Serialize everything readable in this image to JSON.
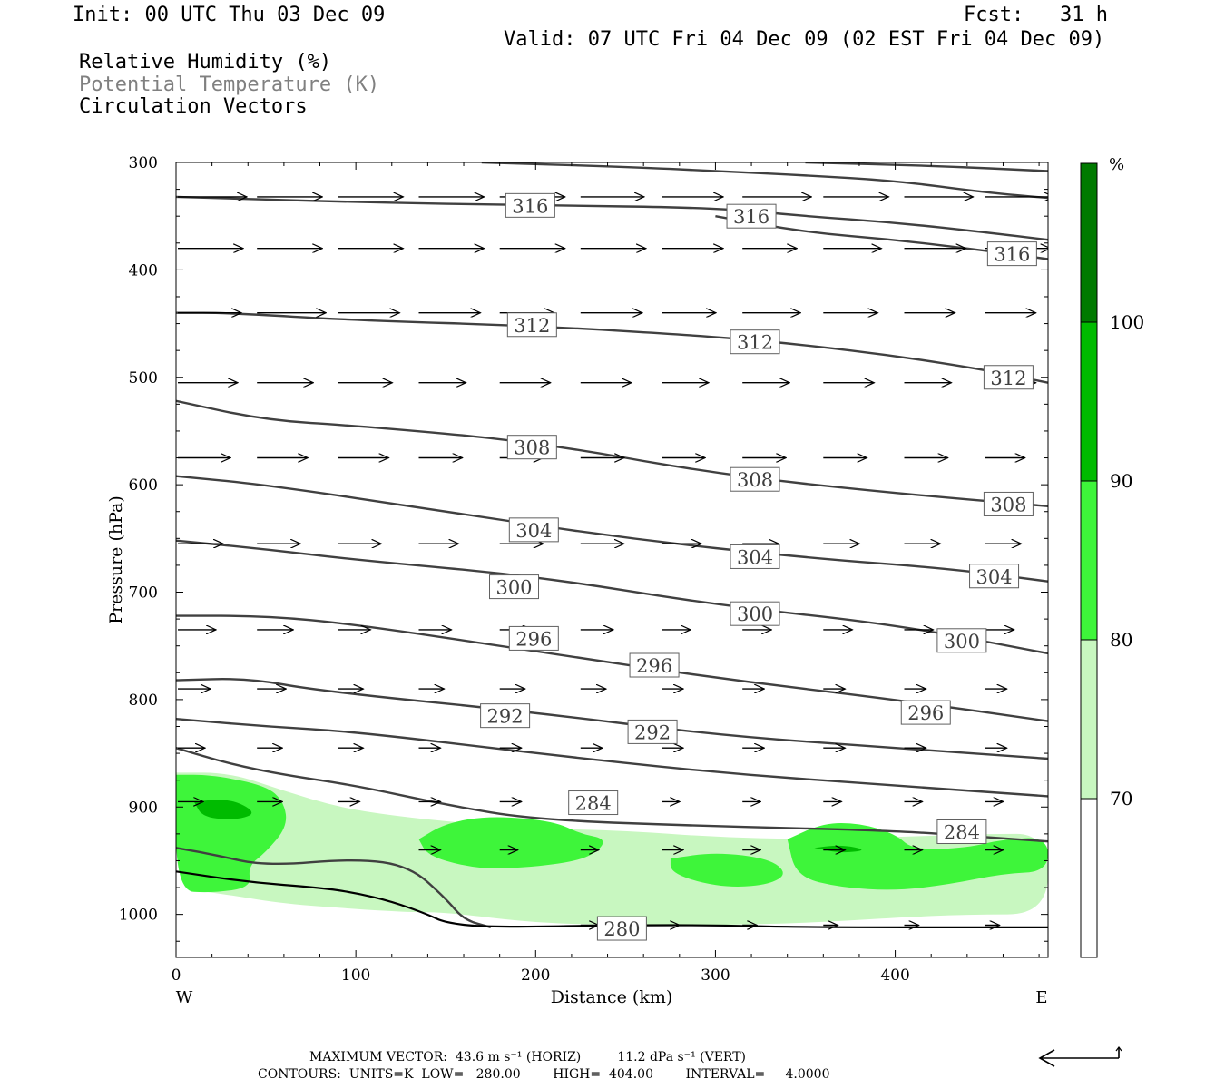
{
  "header": {
    "init": "Init: 00 UTC Thu 03 Dec 09",
    "fcst": "Fcst:   31 h",
    "valid": "Valid: 07 UTC Fri 04 Dec 09 (02 EST Fri 04 Dec 09)",
    "fields": [
      "Relative Humidity (%)",
      "Potential Temperature (K)",
      "Circulation Vectors"
    ]
  },
  "colors": {
    "rh70": "#c8f7c0",
    "rh80": "#3ef53a",
    "rh90": "#00bb00",
    "rh100": "#007a00",
    "theta": "#404040",
    "field2_label": "#808080"
  },
  "chart_data": {
    "type": "cross-section",
    "xlabel": "Distance (km)",
    "ylabel": "Pressure (hPa)",
    "xlim": [
      0,
      485
    ],
    "ylim": [
      300,
      1040
    ],
    "x_ticks": [
      0,
      100,
      200,
      300,
      400
    ],
    "y_ticks": [
      300,
      400,
      500,
      600,
      700,
      800,
      900,
      1000
    ],
    "x_end_labels": {
      "left": "W",
      "right": "E"
    },
    "colorbar": {
      "unit": "%",
      "levels": [
        70,
        80,
        90,
        100
      ],
      "colors": [
        "#ffffff",
        "#c8f7c0",
        "#3ef53a",
        "#00bb00",
        "#007a00"
      ]
    },
    "rh_regions": [
      {
        "level": 70,
        "points": [
          [
            0,
            868
          ],
          [
            30,
            868
          ],
          [
            60,
            885
          ],
          [
            90,
            900
          ],
          [
            120,
            908
          ],
          [
            160,
            915
          ],
          [
            200,
            920
          ],
          [
            250,
            922
          ],
          [
            300,
            928
          ],
          [
            350,
            930
          ],
          [
            400,
            928
          ],
          [
            450,
            925
          ],
          [
            485,
            925
          ],
          [
            485,
            1000
          ],
          [
            440,
            1000
          ],
          [
            400,
            1003
          ],
          [
            350,
            1008
          ],
          [
            300,
            1010
          ],
          [
            250,
            1010
          ],
          [
            200,
            1008
          ],
          [
            150,
            998
          ],
          [
            130,
            998
          ],
          [
            100,
            995
          ],
          [
            60,
            990
          ],
          [
            30,
            982
          ],
          [
            0,
            975
          ]
        ]
      },
      {
        "level": 80,
        "points": [
          [
            0,
            870
          ],
          [
            20,
            870
          ],
          [
            50,
            880
          ],
          [
            60,
            895
          ],
          [
            62,
            918
          ],
          [
            50,
            942
          ],
          [
            40,
            955
          ],
          [
            42,
            975
          ],
          [
            20,
            980
          ],
          [
            0,
            978
          ]
        ]
      },
      {
        "level": 80,
        "points": [
          [
            135,
            930
          ],
          [
            150,
            915
          ],
          [
            175,
            908
          ],
          [
            210,
            913
          ],
          [
            225,
            925
          ],
          [
            240,
            930
          ],
          [
            232,
            945
          ],
          [
            215,
            953
          ],
          [
            180,
            958
          ],
          [
            160,
            955
          ],
          [
            140,
            945
          ]
        ]
      },
      {
        "level": 80,
        "points": [
          [
            275,
            948
          ],
          [
            300,
            942
          ],
          [
            330,
            948
          ],
          [
            340,
            962
          ],
          [
            330,
            972
          ],
          [
            310,
            975
          ],
          [
            290,
            970
          ],
          [
            275,
            960
          ]
        ]
      },
      {
        "level": 80,
        "points": [
          [
            340,
            930
          ],
          [
            360,
            915
          ],
          [
            380,
            915
          ],
          [
            400,
            925
          ],
          [
            410,
            940
          ],
          [
            440,
            938
          ],
          [
            460,
            930
          ],
          [
            485,
            928
          ],
          [
            485,
            960
          ],
          [
            460,
            962
          ],
          [
            430,
            972
          ],
          [
            400,
            978
          ],
          [
            370,
            975
          ],
          [
            345,
            965
          ]
        ]
      },
      {
        "level": 90,
        "points": [
          [
            10,
            895
          ],
          [
            30,
            892
          ],
          [
            45,
            905
          ],
          [
            35,
            912
          ],
          [
            15,
            910
          ]
        ]
      },
      {
        "level": 90,
        "points": [
          [
            355,
            938
          ],
          [
            370,
            935
          ],
          [
            385,
            940
          ],
          [
            370,
            943
          ]
        ]
      }
    ],
    "isotherms": [
      {
        "value": 316,
        "points": [
          [
            0,
            332
          ],
          [
            100,
            337
          ],
          [
            200,
            340
          ],
          [
            300,
            342
          ],
          [
            350,
            350
          ],
          [
            400,
            356
          ],
          [
            450,
            365
          ],
          [
            485,
            372
          ]
        ]
      },
      {
        "value": 316,
        "points": [
          [
            170,
            300
          ],
          [
            250,
            304
          ],
          [
            300,
            308
          ],
          [
            350,
            312
          ],
          [
            400,
            317
          ],
          [
            450,
            328
          ],
          [
            485,
            333
          ]
        ]
      },
      {
        "value": 316,
        "points": [
          [
            350,
            300
          ],
          [
            420,
            303
          ],
          [
            485,
            308
          ]
        ]
      },
      {
        "value": 316,
        "points": [
          [
            300,
            350
          ],
          [
            350,
            365
          ],
          [
            400,
            372
          ],
          [
            450,
            382
          ],
          [
            485,
            390
          ]
        ]
      },
      {
        "value": 312,
        "points": [
          [
            0,
            440
          ],
          [
            30,
            440
          ],
          [
            100,
            447
          ],
          [
            200,
            452
          ],
          [
            300,
            462
          ],
          [
            350,
            470
          ],
          [
            400,
            480
          ],
          [
            450,
            493
          ],
          [
            485,
            505
          ]
        ]
      },
      {
        "value": 308,
        "points": [
          [
            0,
            522
          ],
          [
            50,
            540
          ],
          [
            100,
            545
          ],
          [
            200,
            560
          ],
          [
            300,
            590
          ],
          [
            400,
            608
          ],
          [
            485,
            620
          ]
        ]
      },
      {
        "value": 304,
        "points": [
          [
            0,
            592
          ],
          [
            50,
            600
          ],
          [
            150,
            625
          ],
          [
            250,
            650
          ],
          [
            350,
            668
          ],
          [
            430,
            678
          ],
          [
            485,
            690
          ]
        ]
      },
      {
        "value": 300,
        "points": [
          [
            0,
            652
          ],
          [
            50,
            660
          ],
          [
            100,
            670
          ],
          [
            200,
            685
          ],
          [
            300,
            712
          ],
          [
            400,
            730
          ],
          [
            485,
            757
          ]
        ]
      },
      {
        "value": 296,
        "points": [
          [
            0,
            722
          ],
          [
            50,
            722
          ],
          [
            100,
            730
          ],
          [
            200,
            755
          ],
          [
            300,
            780
          ],
          [
            400,
            800
          ],
          [
            485,
            820
          ]
        ]
      },
      {
        "value": 292,
        "points": [
          [
            0,
            782
          ],
          [
            40,
            780
          ],
          [
            80,
            792
          ],
          [
            200,
            812
          ],
          [
            300,
            833
          ],
          [
            400,
            845
          ],
          [
            485,
            855
          ]
        ]
      },
      {
        "value": 288,
        "points": [
          [
            0,
            818
          ],
          [
            50,
            825
          ],
          [
            100,
            830
          ],
          [
            200,
            850
          ],
          [
            300,
            868
          ],
          [
            400,
            880
          ],
          [
            485,
            890
          ]
        ]
      },
      {
        "value": 284,
        "points": [
          [
            0,
            845
          ],
          [
            30,
            860
          ],
          [
            60,
            870
          ],
          [
            100,
            880
          ],
          [
            150,
            898
          ],
          [
            200,
            912
          ],
          [
            300,
            918
          ],
          [
            400,
            922
          ],
          [
            450,
            928
          ],
          [
            485,
            932
          ]
        ]
      },
      {
        "value": 282,
        "points": [
          [
            0,
            938
          ],
          [
            20,
            944
          ],
          [
            50,
            955
          ],
          [
            100,
            948
          ],
          [
            130,
            955
          ],
          [
            150,
            985
          ],
          [
            160,
            1005
          ],
          [
            175,
            1012
          ]
        ]
      },
      {
        "value": 280,
        "points": [
          [
            0,
            960
          ],
          [
            40,
            970
          ],
          [
            80,
            975
          ],
          [
            100,
            980
          ],
          [
            120,
            988
          ],
          [
            140,
            1000
          ],
          [
            150,
            1008
          ],
          [
            175,
            1012
          ],
          [
            250,
            1010
          ],
          [
            300,
            1010
          ],
          [
            350,
            1012
          ],
          [
            485,
            1012
          ]
        ]
      }
    ],
    "contour_labels": [
      {
        "text": "316",
        "x": 197,
        "p": 340
      },
      {
        "text": "316",
        "x": 320,
        "p": 350
      },
      {
        "text": "316",
        "x": 465,
        "p": 385
      },
      {
        "text": "312",
        "x": 198,
        "p": 451
      },
      {
        "text": "312",
        "x": 322,
        "p": 467
      },
      {
        "text": "312",
        "x": 463,
        "p": 500
      },
      {
        "text": "308",
        "x": 198,
        "p": 565
      },
      {
        "text": "308",
        "x": 322,
        "p": 595
      },
      {
        "text": "308",
        "x": 463,
        "p": 618
      },
      {
        "text": "304",
        "x": 199,
        "p": 642
      },
      {
        "text": "304",
        "x": 322,
        "p": 667
      },
      {
        "text": "304",
        "x": 455,
        "p": 685
      },
      {
        "text": "300",
        "x": 188,
        "p": 695
      },
      {
        "text": "300",
        "x": 322,
        "p": 720
      },
      {
        "text": "300",
        "x": 437,
        "p": 745
      },
      {
        "text": "296",
        "x": 199,
        "p": 743
      },
      {
        "text": "296",
        "x": 266,
        "p": 768
      },
      {
        "text": "296",
        "x": 417,
        "p": 812
      },
      {
        "text": "292",
        "x": 183,
        "p": 815
      },
      {
        "text": "292",
        "x": 265,
        "p": 830
      },
      {
        "text": "284",
        "x": 232,
        "p": 896
      },
      {
        "text": "284",
        "x": 437,
        "p": 923
      },
      {
        "text": "280",
        "x": 248,
        "p": 1013
      }
    ],
    "vectors": {
      "x_positions": [
        0,
        45,
        90,
        135,
        180,
        225,
        270,
        315,
        360,
        405,
        450
      ],
      "rows": [
        {
          "p": 332,
          "u": [
            38,
            36,
            36,
            36,
            36,
            35,
            34,
            38,
            36,
            38,
            38
          ]
        },
        {
          "p": 380,
          "u": [
            36,
            36,
            36,
            36,
            36,
            36,
            34,
            30,
            32,
            34,
            36
          ]
        },
        {
          "p": 440,
          "u": [
            35,
            38,
            34,
            34,
            30,
            34,
            30,
            32,
            30,
            28,
            28
          ]
        },
        {
          "p": 505,
          "u": [
            33,
            31,
            30,
            26,
            28,
            28,
            26,
            26,
            28,
            26,
            28
          ]
        },
        {
          "p": 575,
          "u": [
            29,
            28,
            28,
            24,
            24,
            24,
            24,
            24,
            24,
            24,
            22
          ]
        },
        {
          "p": 655,
          "u": [
            25,
            24,
            24,
            22,
            24,
            24,
            22,
            20,
            20,
            20,
            20
          ]
        },
        {
          "p": 735,
          "u": [
            21,
            20,
            18,
            18,
            18,
            18,
            16,
            16,
            16,
            16,
            16
          ]
        },
        {
          "p": 790,
          "u": [
            18,
            16,
            14,
            14,
            14,
            14,
            12,
            12,
            12,
            12,
            12
          ]
        },
        {
          "p": 845,
          "u": [
            15,
            14,
            14,
            12,
            12,
            12,
            12,
            12,
            12,
            12,
            12
          ]
        },
        {
          "p": 895,
          "u": [
            14,
            14,
            12,
            12,
            12,
            10,
            10,
            10,
            10,
            10,
            10
          ]
        },
        {
          "p": 940,
          "u": [
            0,
            0,
            0,
            12,
            10,
            10,
            12,
            10,
            12,
            10,
            10
          ]
        },
        {
          "p": 1010,
          "u": [
            0,
            0,
            0,
            0,
            0,
            10,
            10,
            8,
            8,
            8,
            8
          ]
        }
      ]
    }
  },
  "footer": {
    "max_vector": "MAXIMUM VECTOR:  43.6 m s⁻¹ (HORIZ)         11.2 dPa s⁻¹ (VERT)",
    "contours": "CONTOURS:  UNITS=K  LOW=   280.00        HIGH=  404.00        INTERVAL=     4.0000"
  }
}
